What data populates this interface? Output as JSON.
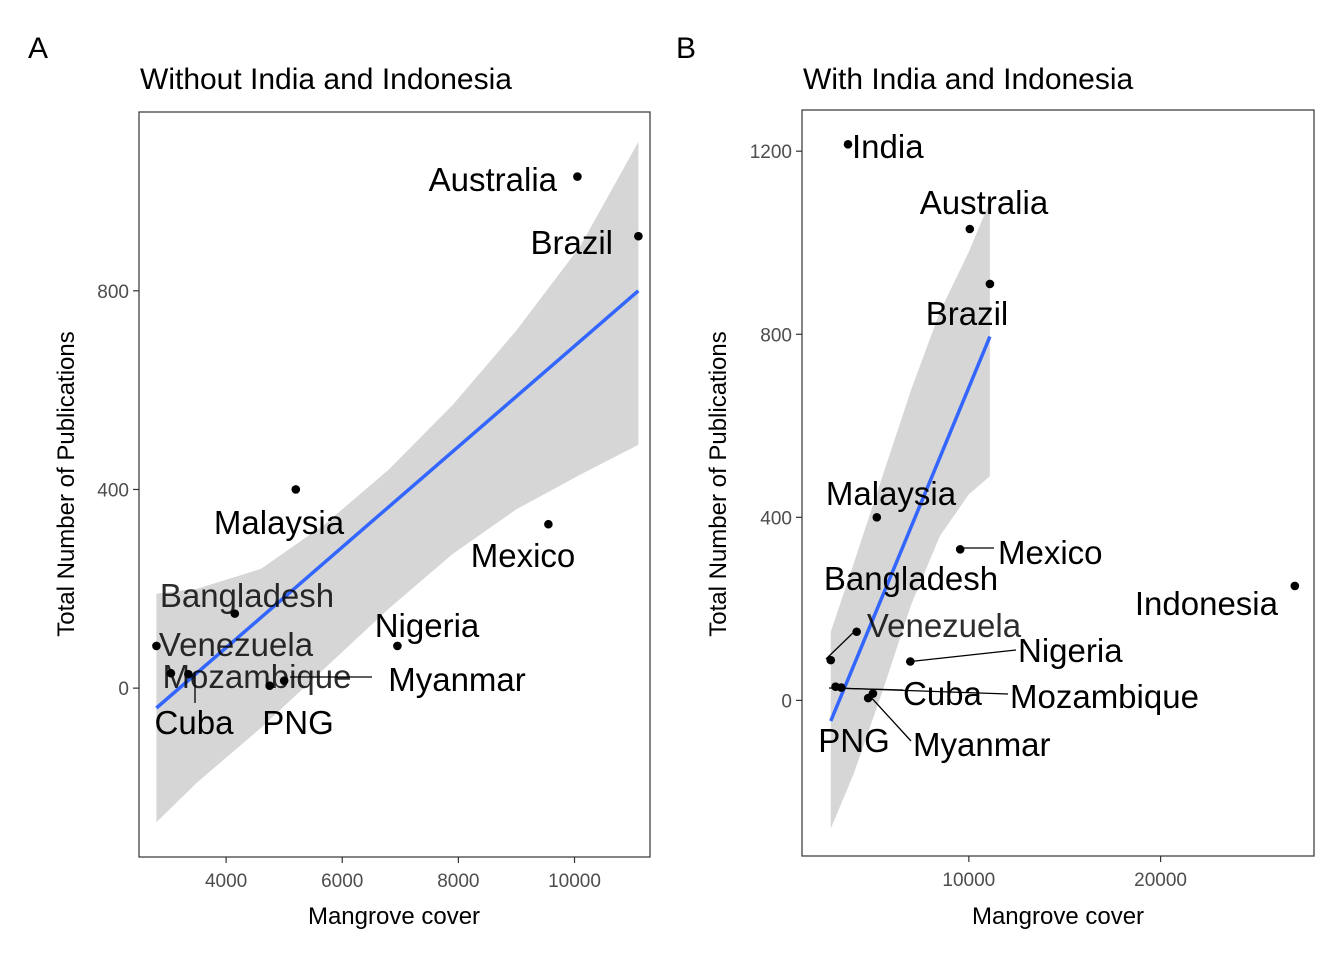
{
  "chart_data": [
    {
      "type": "scatter",
      "panel_tag": "A",
      "title": "Without India and Indonesia",
      "xlabel": "Mangrove cover",
      "ylabel": "Total Number of Publications",
      "xlim": [
        2500,
        11300
      ],
      "ylim": [
        -340,
        1160
      ],
      "x_ticks": [
        4000,
        6000,
        8000,
        10000
      ],
      "x_tick_labels": [
        "4000",
        "6000",
        "8000",
        "10000"
      ],
      "y_ticks": [
        0,
        400,
        800
      ],
      "y_tick_labels": [
        "0",
        "400",
        "800"
      ],
      "grid": false,
      "points": [
        {
          "label": "Australia",
          "x": 10050,
          "y": 1030
        },
        {
          "label": "Brazil",
          "x": 11100,
          "y": 910
        },
        {
          "label": "Malaysia",
          "x": 5200,
          "y": 400
        },
        {
          "label": "Mexico",
          "x": 9550,
          "y": 330
        },
        {
          "label": "Bangladesh",
          "x": 4150,
          "y": 150
        },
        {
          "label": "Venezuela",
          "x": 2800,
          "y": 85
        },
        {
          "label": "Nigeria",
          "x": 6950,
          "y": 85
        },
        {
          "label": "Mozambique",
          "x": 3050,
          "y": 30
        },
        {
          "label": "Myanmar",
          "x": 5000,
          "y": 15
        },
        {
          "label": "Cuba",
          "x": 3350,
          "y": 28
        },
        {
          "label": "PNG",
          "x": 4750,
          "y": 5
        }
      ],
      "fit": {
        "x": [
          2800,
          11100
        ],
        "y": [
          -40,
          800
        ]
      },
      "ci_upper": [
        {
          "x": 2800,
          "y": 190
        },
        {
          "x": 3500,
          "y": 200
        },
        {
          "x": 4600,
          "y": 240
        },
        {
          "x": 5700,
          "y": 330
        },
        {
          "x": 6800,
          "y": 440
        },
        {
          "x": 7900,
          "y": 570
        },
        {
          "x": 9000,
          "y": 720
        },
        {
          "x": 10100,
          "y": 890
        },
        {
          "x": 11100,
          "y": 1100
        }
      ],
      "ci_lower": [
        {
          "x": 11100,
          "y": 490
        },
        {
          "x": 10100,
          "y": 430
        },
        {
          "x": 9000,
          "y": 360
        },
        {
          "x": 7900,
          "y": 270
        },
        {
          "x": 6800,
          "y": 160
        },
        {
          "x": 5700,
          "y": 40
        },
        {
          "x": 4600,
          "y": -80
        },
        {
          "x": 3500,
          "y": -190
        },
        {
          "x": 2800,
          "y": -270
        }
      ]
    },
    {
      "type": "scatter",
      "panel_tag": "B",
      "title": "With India and Indonesia",
      "xlabel": "Mangrove cover",
      "ylabel": "Total Number of Publications",
      "xlim": [
        1300,
        28000
      ],
      "ylim": [
        -340,
        1290
      ],
      "x_ticks": [
        10000,
        20000
      ],
      "x_tick_labels": [
        "10000",
        "20000"
      ],
      "y_ticks": [
        0,
        400,
        800,
        1200
      ],
      "y_tick_labels": [
        "0",
        "400",
        "800",
        "1200"
      ],
      "grid": false,
      "points": [
        {
          "label": "India",
          "x": 3700,
          "y": 1215
        },
        {
          "label": "Australia",
          "x": 10050,
          "y": 1030
        },
        {
          "label": "Brazil",
          "x": 11100,
          "y": 910
        },
        {
          "label": "Malaysia",
          "x": 5200,
          "y": 400
        },
        {
          "label": "Mexico",
          "x": 9550,
          "y": 330
        },
        {
          "label": "Indonesia",
          "x": 27000,
          "y": 250
        },
        {
          "label": "Bangladesh",
          "x": 4150,
          "y": 150
        },
        {
          "label": "Venezuela",
          "x": 2800,
          "y": 88
        },
        {
          "label": "Nigeria",
          "x": 6950,
          "y": 85
        },
        {
          "label": "Cuba",
          "x": 3350,
          "y": 28
        },
        {
          "label": "Mozambique",
          "x": 3050,
          "y": 30
        },
        {
          "label": "Myanmar",
          "x": 5000,
          "y": 15
        },
        {
          "label": "PNG",
          "x": 4750,
          "y": 5
        }
      ],
      "fit": {
        "x": [
          2800,
          11100
        ],
        "y": [
          -45,
          795
        ]
      },
      "ci_upper": [
        {
          "x": 2800,
          "y": 150
        },
        {
          "x": 4000,
          "y": 300
        },
        {
          "x": 5500,
          "y": 490
        },
        {
          "x": 7000,
          "y": 680
        },
        {
          "x": 8500,
          "y": 850
        },
        {
          "x": 10000,
          "y": 980
        },
        {
          "x": 11100,
          "y": 1090
        }
      ],
      "ci_lower": [
        {
          "x": 11100,
          "y": 490
        },
        {
          "x": 10000,
          "y": 450
        },
        {
          "x": 8500,
          "y": 360
        },
        {
          "x": 7000,
          "y": 210
        },
        {
          "x": 5500,
          "y": 20
        },
        {
          "x": 4000,
          "y": -160
        },
        {
          "x": 2800,
          "y": -280
        }
      ]
    }
  ]
}
